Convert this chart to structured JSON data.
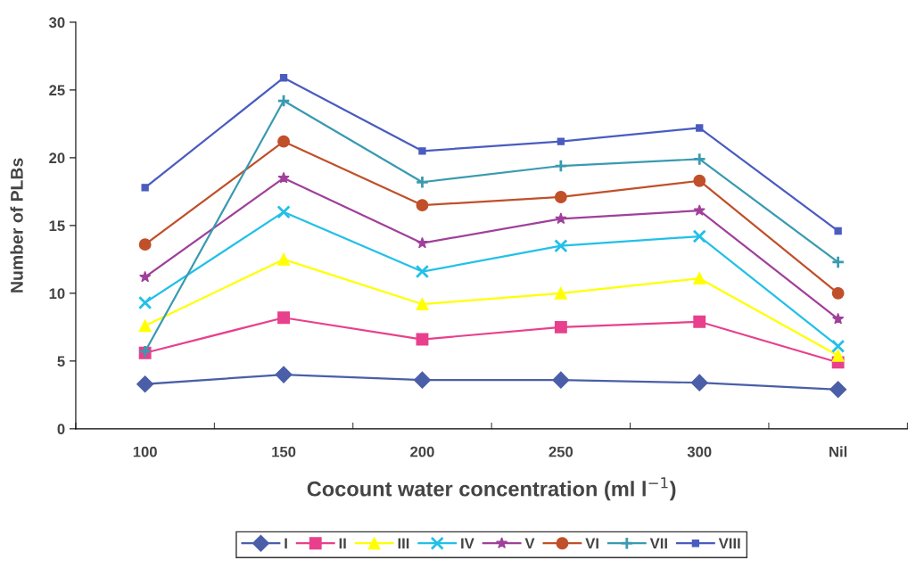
{
  "chart_data": {
    "type": "line",
    "xlabel": "Cocount water concentration (ml l$^{−1}$)",
    "ylabel": "Number of PLBs",
    "categories": [
      "100",
      "150",
      "200",
      "250",
      "300",
      "Nil"
    ],
    "series": [
      {
        "name": "I",
        "color": "#4a5fa8",
        "marker": "diamond",
        "values": [
          3.3,
          4.0,
          3.6,
          3.6,
          3.4,
          2.9
        ]
      },
      {
        "name": "II",
        "color": "#e8408c",
        "marker": "square",
        "values": [
          5.6,
          8.2,
          6.6,
          7.5,
          7.9,
          4.9
        ]
      },
      {
        "name": "III",
        "color": "#ffff00",
        "marker": "triangle",
        "values": [
          7.6,
          12.5,
          9.2,
          10.0,
          11.1,
          5.4
        ]
      },
      {
        "name": "IV",
        "color": "#22c0e8",
        "marker": "cross",
        "values": [
          9.3,
          16.0,
          11.6,
          13.5,
          14.2,
          6.1
        ]
      },
      {
        "name": "V",
        "color": "#a0409a",
        "marker": "star",
        "values": [
          11.2,
          18.5,
          13.7,
          15.5,
          16.1,
          8.1
        ]
      },
      {
        "name": "VI",
        "color": "#c0502a",
        "marker": "circle",
        "values": [
          13.6,
          21.2,
          16.5,
          17.1,
          18.3,
          10.0
        ]
      },
      {
        "name": "VII",
        "color": "#3a9ab0",
        "marker": "plus",
        "values": [
          5.7,
          24.2,
          18.2,
          19.4,
          19.9,
          12.3
        ]
      },
      {
        "name": "VIII",
        "color": "#4a5cc0",
        "marker": "square",
        "values": [
          17.8,
          25.9,
          20.5,
          21.2,
          22.2,
          14.6
        ]
      }
    ],
    "ylim": [
      0,
      30
    ],
    "yticks": [
      0,
      5,
      10,
      15,
      20,
      25,
      30
    ],
    "grid": false,
    "legend": "bottom",
    "line_style": "solid"
  }
}
